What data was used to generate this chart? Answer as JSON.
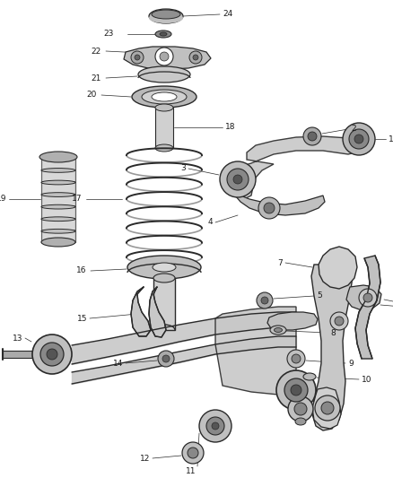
{
  "bg": "#ffffff",
  "lc": "#2a2a2a",
  "fc_light": "#c8c8c8",
  "fc_mid": "#a0a0a0",
  "fc_dark": "#787878",
  "fig_w": 4.38,
  "fig_h": 5.33,
  "dpi": 100,
  "label_fs": 6.5,
  "label_color": "#1a1a1a"
}
